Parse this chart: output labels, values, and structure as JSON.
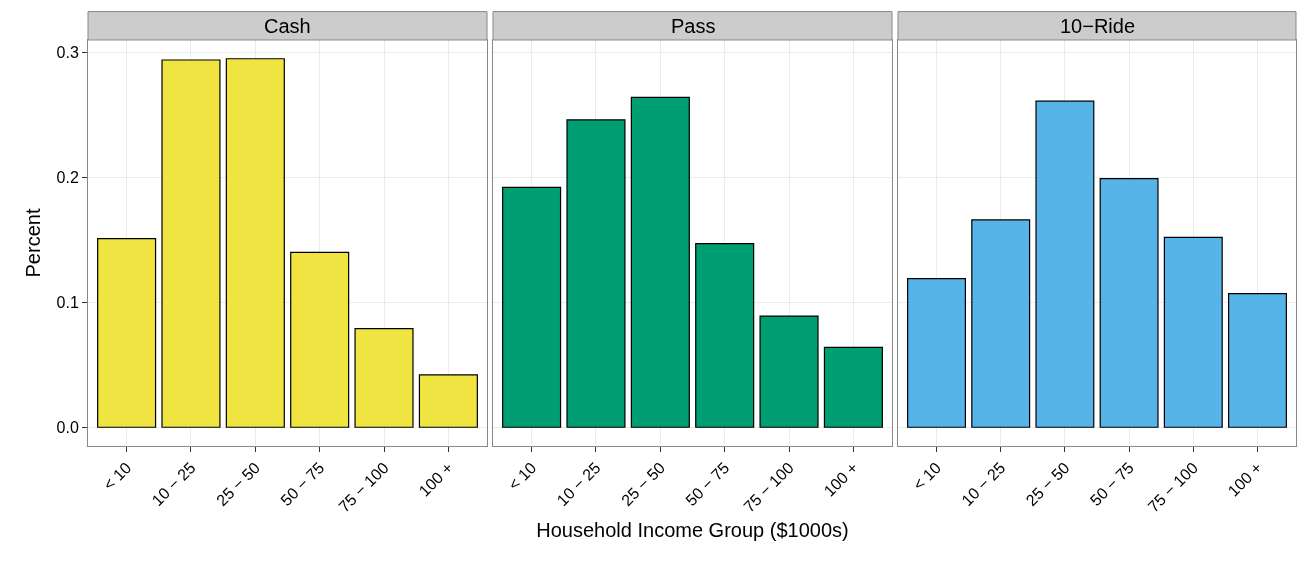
{
  "chart_data": [
    {
      "type": "bar",
      "title": "Cash",
      "ylabel": "Percent",
      "categories": [
        "< 10",
        "10 − 25",
        "25 − 50",
        "50 − 75",
        "75 − 100",
        "100 +"
      ],
      "series": [
        {
          "color": "#f0e442",
          "values": [
            0.151,
            0.294,
            0.295,
            0.14,
            0.079,
            0.042
          ]
        }
      ],
      "ylim": [
        -0.015,
        0.31
      ],
      "yticks": [
        {
          "value": 0,
          "label": "0.0"
        },
        0.1,
        0.2,
        0.3
      ],
      "grid": true
    },
    {
      "type": "bar",
      "title": "Pass",
      "xlabel": "Household Income Group ($1000s)",
      "categories": [
        "< 10",
        "10 − 25",
        "25 − 50",
        "50 − 75",
        "75 − 100",
        "100 +"
      ],
      "series": [
        {
          "color": "#009e73",
          "values": [
            0.192,
            0.246,
            0.264,
            0.147,
            0.089,
            0.064
          ]
        }
      ],
      "ylim": [
        -0.015,
        0.31
      ],
      "yticks": [
        0,
        0.1,
        0.2,
        0.3
      ],
      "grid": true,
      "tick_labels": "x"
    },
    {
      "type": "bar",
      "title": "10−Ride",
      "categories": [
        "< 10",
        "10 − 25",
        "25 − 50",
        "50 − 75",
        "75 − 100",
        "100 +"
      ],
      "series": [
        {
          "color": "#56b4e9",
          "values": [
            0.119,
            0.166,
            0.261,
            0.199,
            0.152,
            0.107
          ]
        }
      ],
      "ylim": [
        -0.015,
        0.31
      ],
      "yticks": [
        0,
        0.1,
        0.2,
        0.3
      ],
      "grid": true,
      "tick_labels": "x"
    }
  ]
}
